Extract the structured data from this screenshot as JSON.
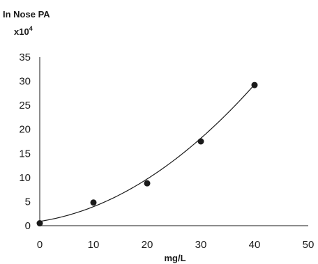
{
  "chart_data": {
    "type": "scatter",
    "ylabel": "In Nose PA",
    "ylabel_multiplier_base": "x10",
    "ylabel_multiplier_exp": "4",
    "xlabel": "mg/L",
    "xlim": [
      0,
      50
    ],
    "ylim": [
      0,
      35
    ],
    "xticks": [
      "0",
      "10",
      "20",
      "30",
      "40",
      "50"
    ],
    "yticks": [
      "0",
      "5",
      "10",
      "15",
      "20",
      "25",
      "30",
      "35"
    ],
    "grid": false,
    "legend": "none",
    "series": [
      {
        "points": [
          {
            "x": 0,
            "y": 0.5
          },
          {
            "x": 10,
            "y": 4.8
          },
          {
            "x": 20,
            "y": 8.8
          },
          {
            "x": 30,
            "y": 17.5
          },
          {
            "x": 40,
            "y": 29.2
          }
        ]
      }
    ],
    "trendline": {
      "type": "polynomial",
      "coefficients": [
        0.9,
        0.17,
        0.0135
      ],
      "x_range": [
        0,
        40
      ]
    },
    "colors": {
      "marker": "#1a1a1a",
      "line": "#1a1a1a",
      "axis": "#1a1a1a"
    }
  }
}
